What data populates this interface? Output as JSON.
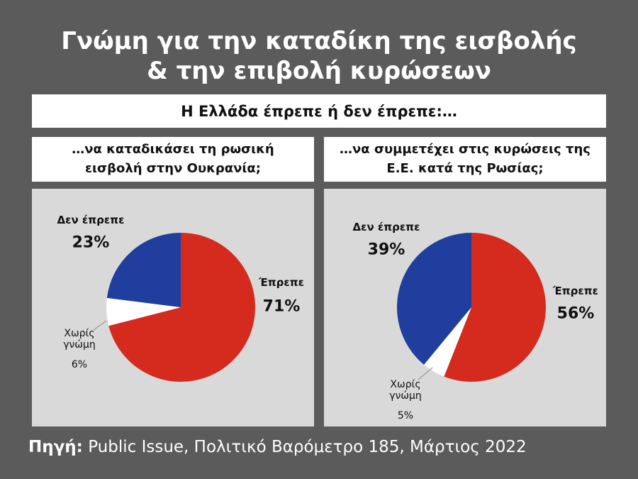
{
  "header": {
    "title": [
      "Γνώμη για την καταδίκη της εισβολής",
      "& την επιβολή κυρώσεων"
    ],
    "subtitle": "Η Ελλάδα έπρεπε ή δεν έπρεπε:…"
  },
  "chart_data": [
    {
      "type": "pie",
      "title": "…να καταδικάσει τη ρωσική εισβολή στην Ουκρανία;",
      "categories": [
        "Έπρεπε",
        "Χωρίς γνώμη",
        "Δεν έπρεπε"
      ],
      "values": [
        71,
        6,
        23
      ],
      "value_labels": [
        "71%",
        "6%",
        "23%"
      ],
      "colors": [
        "#d42b1e",
        "#ffffff",
        "#1f3e9e"
      ]
    },
    {
      "type": "pie",
      "title": "…να συμμετέχει στις κυρώσεις της Ε.Ε. κατά της Ρωσίας;",
      "categories": [
        "Έπρεπε",
        "Χωρίς γνώμη",
        "Δεν έπρεπε"
      ],
      "values": [
        56,
        5,
        39
      ],
      "value_labels": [
        "56%",
        "5%",
        "39%"
      ],
      "colors": [
        "#d42b1e",
        "#ffffff",
        "#1f3e9e"
      ]
    }
  ],
  "source": {
    "label": "Πηγή:",
    "text": "Public Issue, Πολιτικό Βαρόμετρο 185, Μάρτιος 2022"
  }
}
